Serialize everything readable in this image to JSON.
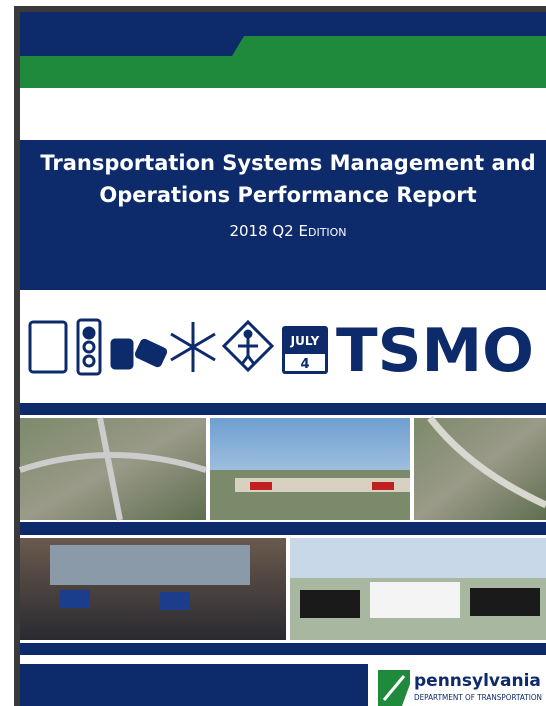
{
  "header": {
    "title_lines": [
      "Transportation Systems Management and",
      "Operations Performance Report"
    ],
    "edition": "2018 Q2 Edition"
  },
  "icons": {
    "calendar_month": "JULY",
    "calendar_day": "4"
  },
  "brand": "TSMO",
  "logo": {
    "name": "pennsylvania",
    "department": "DEPARTMENT OF TRANSPORTATION"
  }
}
